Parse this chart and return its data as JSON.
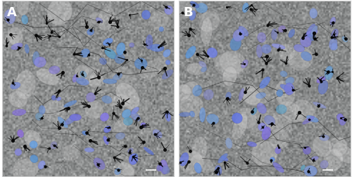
{
  "figure_width": 5.0,
  "figure_height": 2.52,
  "dpi": 100,
  "label_A": "A",
  "label_B": "B",
  "label_color": "#ffffff",
  "label_fontsize": 13,
  "label_fontweight": "bold",
  "bg_gray": "#9a9e9e",
  "scale_bar_color": "#ffffff",
  "panel_A": {
    "seed": 10,
    "n_cells": 70,
    "n_fibers": 40,
    "n_cell_bodies": 25
  },
  "panel_B": {
    "seed": 77,
    "n_cells": 80,
    "n_fibers": 30,
    "n_cell_bodies": 30
  }
}
